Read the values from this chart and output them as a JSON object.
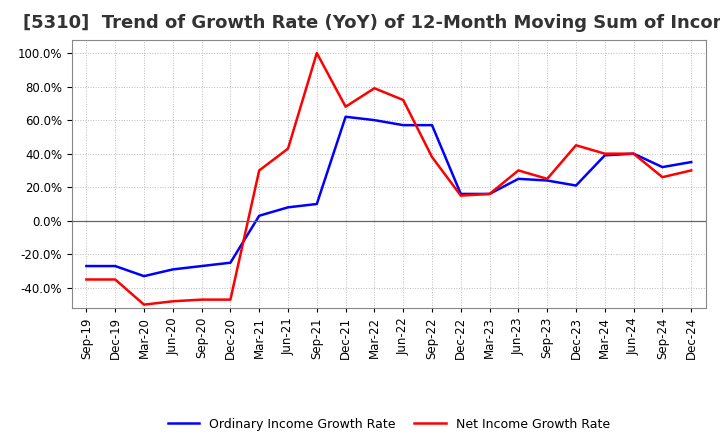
{
  "title": "[5310]  Trend of Growth Rate (YoY) of 12-Month Moving Sum of Incomes",
  "x_labels": [
    "Sep-19",
    "Dec-19",
    "Mar-20",
    "Jun-20",
    "Sep-20",
    "Dec-20",
    "Mar-21",
    "Jun-21",
    "Sep-21",
    "Dec-21",
    "Mar-22",
    "Jun-22",
    "Sep-22",
    "Dec-22",
    "Mar-23",
    "Jun-23",
    "Sep-23",
    "Dec-23",
    "Mar-24",
    "Jun-24",
    "Sep-24",
    "Dec-24"
  ],
  "ordinary_income": [
    -0.27,
    -0.27,
    -0.33,
    -0.29,
    -0.27,
    -0.25,
    0.03,
    0.08,
    0.1,
    0.62,
    0.6,
    0.57,
    0.57,
    0.16,
    0.16,
    0.25,
    0.24,
    0.21,
    0.39,
    0.4,
    0.32,
    0.35
  ],
  "net_income": [
    -0.35,
    -0.35,
    -0.5,
    -0.48,
    -0.47,
    -0.47,
    0.3,
    0.43,
    1.0,
    0.68,
    0.79,
    0.72,
    0.38,
    0.15,
    0.16,
    0.3,
    0.25,
    0.45,
    0.4,
    0.4,
    0.26,
    0.3
  ],
  "ordinary_color": "#0000ff",
  "net_color": "#ff0000",
  "ylim": [
    -0.52,
    1.08
  ],
  "yticks": [
    -0.4,
    -0.2,
    0.0,
    0.2,
    0.4,
    0.6,
    0.8,
    1.0
  ],
  "background_color": "#ffffff",
  "grid_color": "#bbbbbb",
  "legend_ordinary": "Ordinary Income Growth Rate",
  "legend_net": "Net Income Growth Rate",
  "title_fontsize": 13,
  "tick_fontsize": 8.5
}
